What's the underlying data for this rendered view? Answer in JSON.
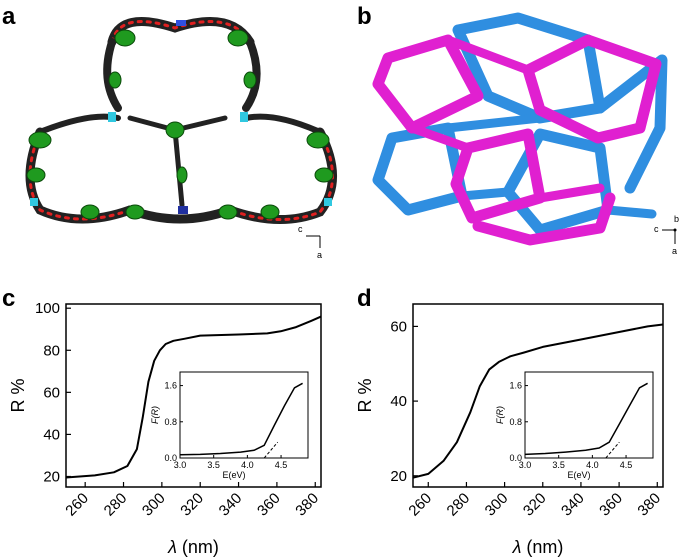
{
  "panels": {
    "a": {
      "letter": "a",
      "axes": {
        "horizontal": "c",
        "vertical": "a"
      }
    },
    "b": {
      "letter": "b",
      "axes": {
        "horizontal": "c",
        "depth": "b",
        "vertical": "a"
      }
    },
    "c": {
      "letter": "c"
    },
    "d": {
      "letter": "d"
    }
  },
  "colors": {
    "magenta": "#e020d0",
    "blue": "#2f8ee0",
    "green": "#1f9a1f",
    "red": "#e02020",
    "black": "#000000"
  },
  "chart_data": [
    {
      "panel": "c",
      "type": "line",
      "xlabel_symbol": "λ",
      "xlabel_unit": " (nm)",
      "ylabel": "R %",
      "xlim": [
        250,
        383
      ],
      "ylim": [
        15,
        102
      ],
      "xticks": [
        260,
        280,
        300,
        320,
        340,
        360,
        380
      ],
      "yticks": [
        20,
        40,
        60,
        80,
        100
      ],
      "x": [
        250,
        265,
        275,
        282,
        287,
        290,
        293,
        296,
        299,
        302,
        306,
        312,
        320,
        340,
        355,
        362,
        370,
        378,
        383
      ],
      "y": [
        19.5,
        20.5,
        22,
        25,
        33,
        48,
        65,
        75,
        80,
        83,
        84.5,
        85.5,
        87,
        87.5,
        88,
        89,
        91,
        94,
        96
      ],
      "inset": {
        "ylabel": "F(R)",
        "xlabel": "E(eV)",
        "xlim": [
          3.0,
          4.9
        ],
        "ylim": [
          0,
          1.9
        ],
        "xticks": [
          "3.0",
          "3.5",
          "4.0",
          "4.5"
        ],
        "yticks": [
          "0.0",
          "0.8",
          "1.6"
        ],
        "x": [
          3.0,
          3.3,
          3.6,
          3.9,
          4.1,
          4.25,
          4.4,
          4.55,
          4.7,
          4.82
        ],
        "y": [
          0.07,
          0.08,
          0.1,
          0.13,
          0.17,
          0.28,
          0.72,
          1.15,
          1.55,
          1.65
        ],
        "tangent": {
          "x": [
            4.25,
            4.45
          ],
          "y": [
            0.0,
            0.35
          ]
        }
      }
    },
    {
      "panel": "d",
      "type": "line",
      "xlabel_symbol": "λ",
      "xlabel_unit": " (nm)",
      "ylabel": "R %",
      "xlim": [
        252,
        383
      ],
      "ylim": [
        17,
        66
      ],
      "xticks": [
        260,
        280,
        300,
        320,
        340,
        360,
        380
      ],
      "yticks": [
        20,
        40,
        60
      ],
      "x": [
        252,
        260,
        268,
        275,
        282,
        287,
        292,
        297,
        303,
        310,
        320,
        340,
        360,
        375,
        383
      ],
      "y": [
        19.5,
        20.5,
        24,
        29,
        37,
        44,
        48.5,
        50.5,
        52,
        53,
        54.5,
        56.5,
        58.5,
        60,
        60.5
      ],
      "inset": {
        "ylabel": "F(R)",
        "xlabel": "E(eV)",
        "xlim": [
          3.0,
          4.9
        ],
        "ylim": [
          0,
          1.9
        ],
        "xticks": [
          "3.0",
          "3.5",
          "4.0",
          "4.5"
        ],
        "yticks": [
          "0.0",
          "0.8",
          "1.6"
        ],
        "x": [
          3.0,
          3.3,
          3.6,
          3.9,
          4.1,
          4.25,
          4.4,
          4.55,
          4.7,
          4.82
        ],
        "y": [
          0.08,
          0.1,
          0.13,
          0.17,
          0.22,
          0.35,
          0.75,
          1.15,
          1.55,
          1.65
        ],
        "tangent": {
          "x": [
            4.2,
            4.4
          ],
          "y": [
            0.0,
            0.35
          ]
        }
      }
    }
  ]
}
